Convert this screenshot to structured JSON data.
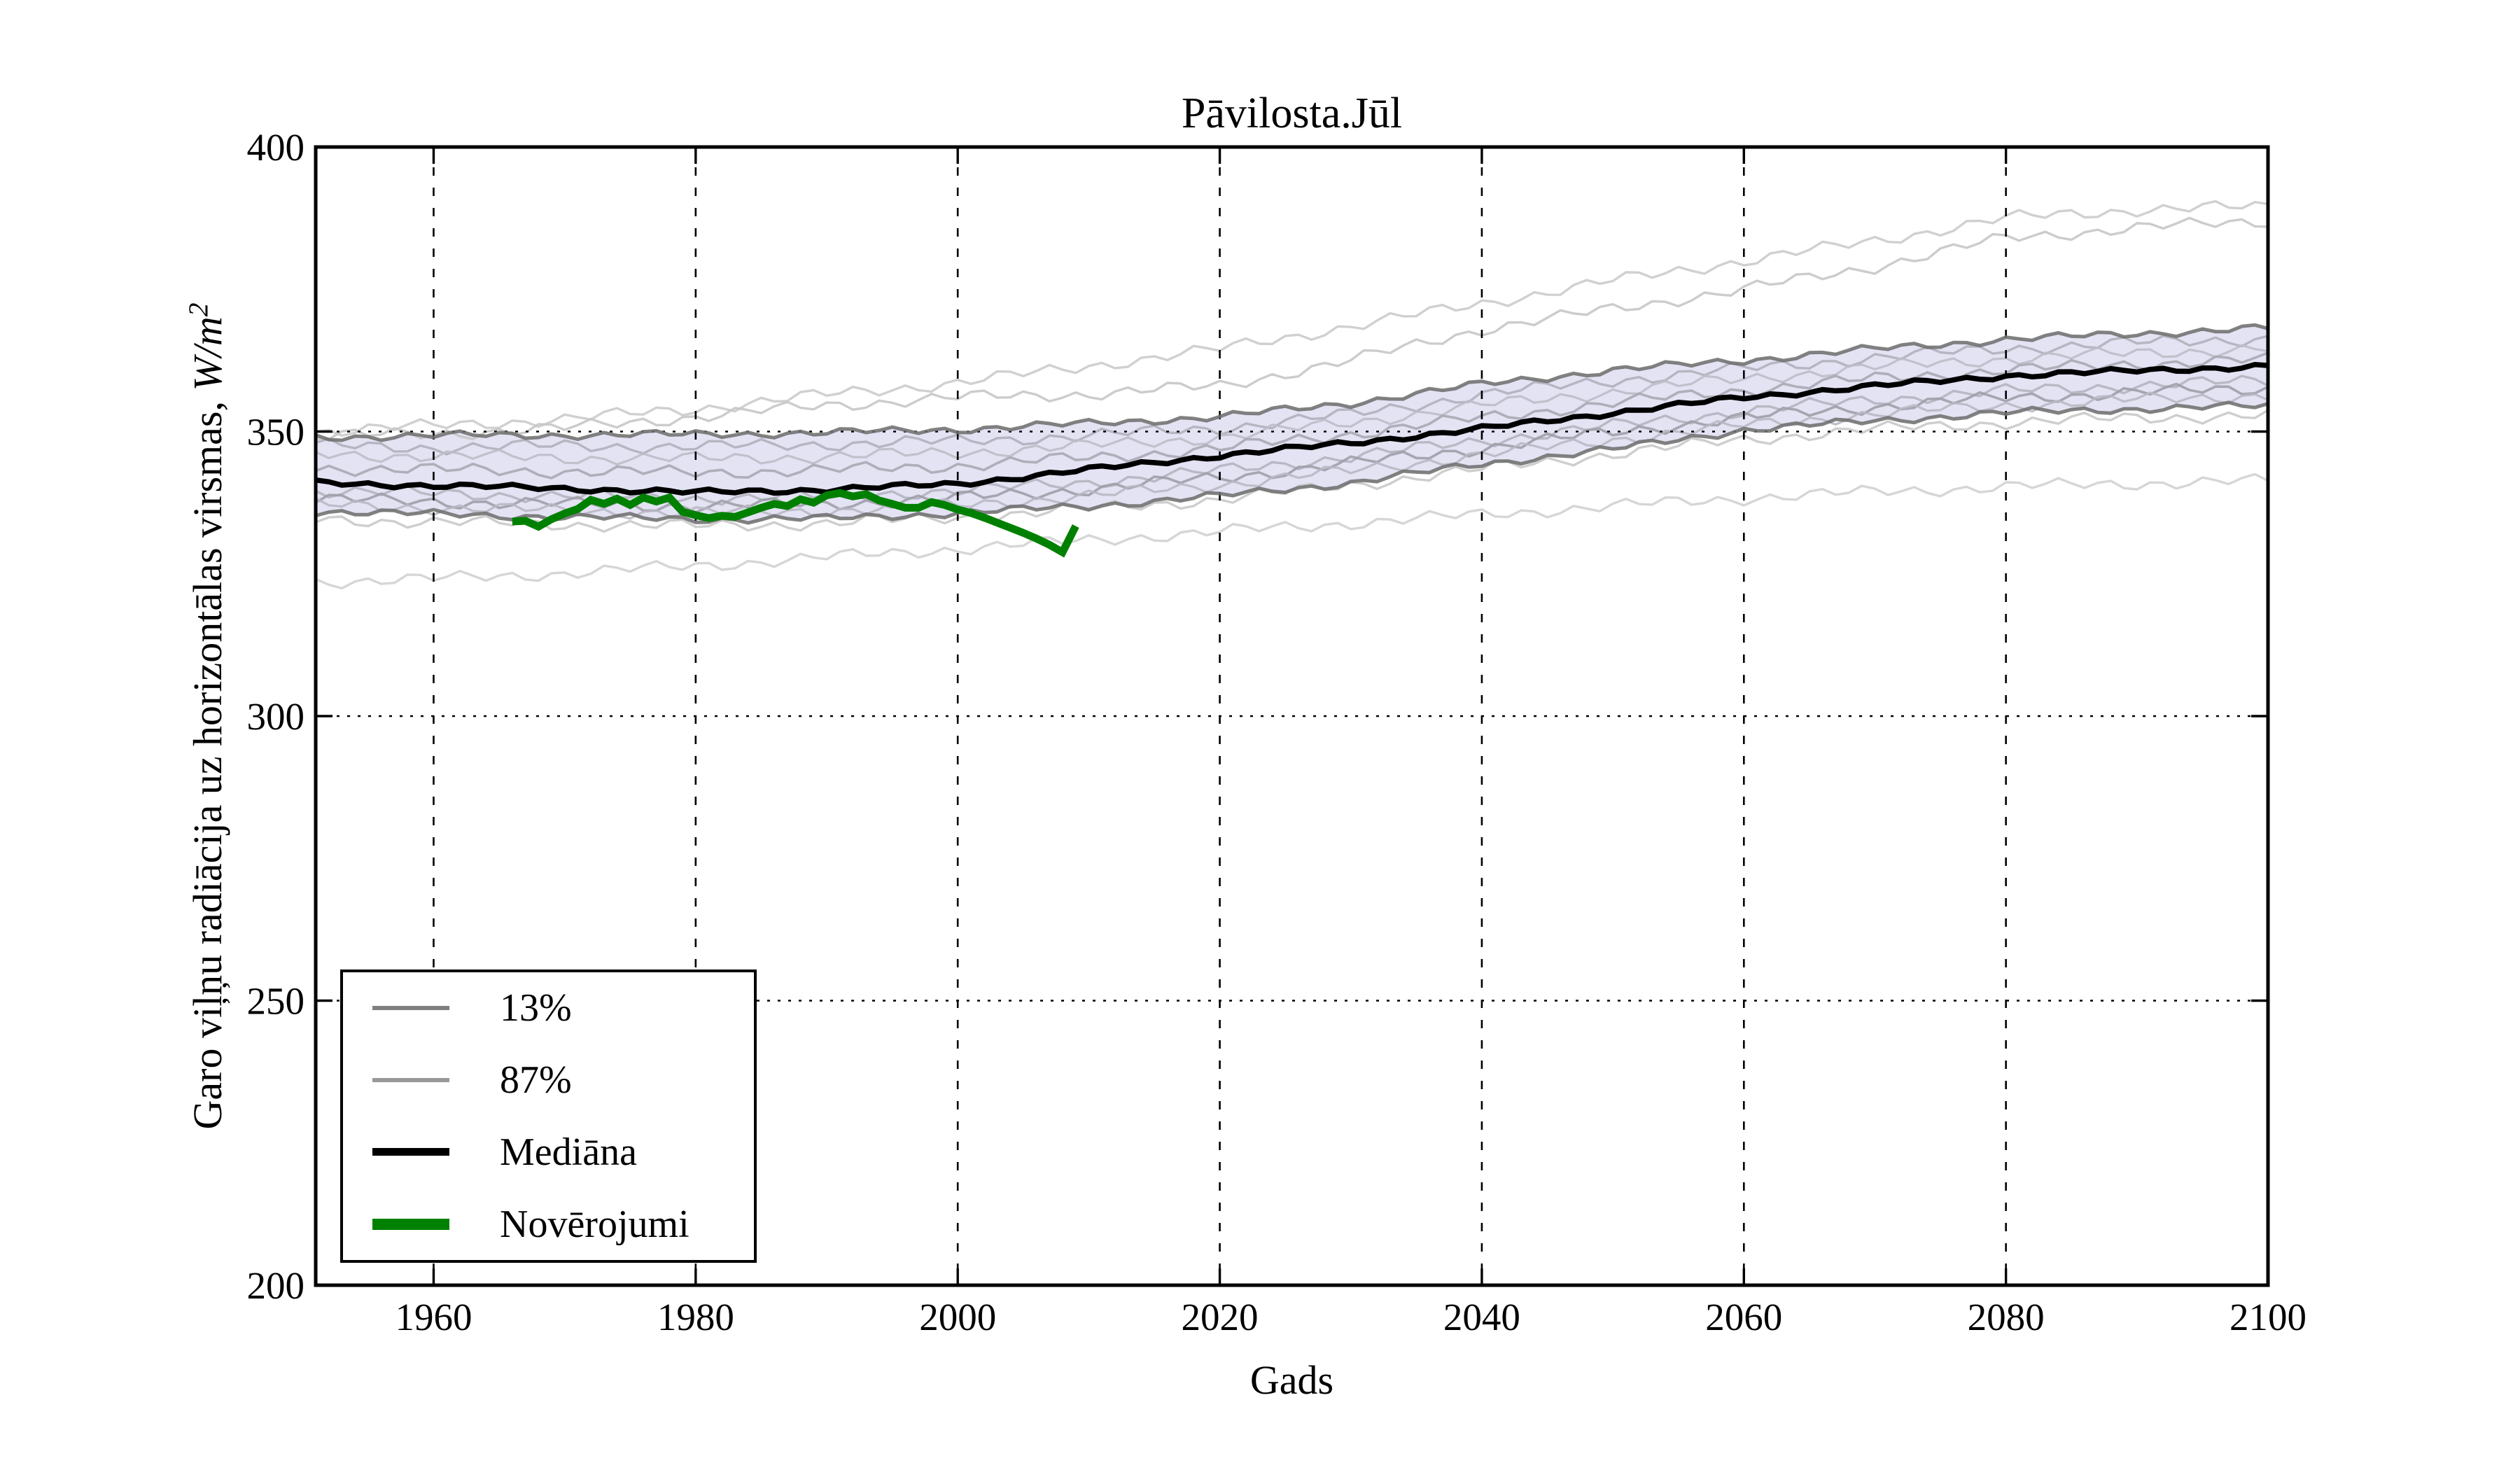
{
  "title": "Pāvilosta.Jūl",
  "axes": {
    "xlabel": "Gads",
    "ylabel_prefix": "Garo viļņu radiācija uz horizontālas virsmas, ",
    "ylabel_unit": "W/m",
    "ylabel_exponent": "2"
  },
  "legend": {
    "items": [
      {
        "label": "13%",
        "color": "#808080",
        "thickness": 6
      },
      {
        "label": "87%",
        "color": "#999999",
        "thickness": 6
      },
      {
        "label": "Mediāna",
        "color": "#000000",
        "thickness": 11
      },
      {
        "label": "Novērojumi",
        "color": "#008000",
        "thickness": 16
      }
    ]
  },
  "chart_data": {
    "type": "line",
    "title": "Pāvilosta.Jūl",
    "xlabel": "Gads",
    "ylabel": "Garo viļņu radiācija uz horizontālas virsmas, W/m²",
    "xlim": [
      1951,
      2100
    ],
    "ylim": [
      200,
      400
    ],
    "xticks": [
      1960,
      1980,
      2000,
      2020,
      2040,
      2060,
      2080,
      2100
    ],
    "yticks": [
      200,
      250,
      300,
      350,
      400
    ],
    "grid": true,
    "grid_style": "dotted",
    "legend_position": "lower left",
    "band_fill_color": "#e3e3f4",
    "model_years": [
      1951,
      1960,
      1970,
      1980,
      1990,
      2000,
      2010,
      2020,
      2030,
      2040,
      2050,
      2060,
      2070,
      2080,
      2090,
      2100
    ],
    "series": [
      {
        "name": "87%",
        "role": "quantile_upper_band_edge",
        "color": "#6f6f6f",
        "width": 5,
        "values": [
          349.0,
          349.3,
          349.4,
          349.5,
          349.8,
          350.4,
          351.4,
          352.6,
          355.0,
          358.3,
          360.8,
          362.5,
          364.5,
          366.2,
          367.2,
          368.2
        ]
      },
      {
        "name": "13%",
        "role": "quantile_lower_band_edge",
        "color": "#6f6f6f",
        "width": 5,
        "values": [
          336.0,
          335.5,
          335.0,
          334.6,
          334.7,
          335.7,
          336.9,
          338.7,
          341.0,
          344.3,
          346.9,
          350.3,
          351.9,
          353.3,
          354.0,
          354.5
        ]
      },
      {
        "name": "Mediāna",
        "role": "median",
        "color": "#000000",
        "width": 7.5,
        "values": [
          341.0,
          340.5,
          340.0,
          339.3,
          339.8,
          340.8,
          343.3,
          345.8,
          348.0,
          350.5,
          353.3,
          356.0,
          358.0,
          359.8,
          360.7,
          361.5
        ]
      },
      {
        "name": "Novērojumi",
        "role": "observations",
        "color": "#008000",
        "width": 11,
        "x": [
          1966,
          1967,
          1968,
          1969,
          1970,
          1971,
          1972,
          1973,
          1974,
          1975,
          1976,
          1977,
          1978,
          1979,
          1980,
          1981,
          1982,
          1983,
          1984,
          1985,
          1986,
          1987,
          1988,
          1989,
          1990,
          1991,
          1992,
          1993,
          1994,
          1995,
          1996,
          1997,
          1998,
          1999,
          2000,
          2001,
          2002,
          2003,
          2004,
          2005,
          2006,
          2007,
          2008,
          2009
        ],
        "values": [
          334.2,
          334.3,
          333.3,
          334.6,
          335.6,
          336.4,
          338.0,
          337.3,
          338.2,
          337.1,
          338.4,
          337.7,
          338.4,
          335.9,
          335.3,
          334.8,
          335.2,
          335.0,
          335.8,
          336.6,
          337.3,
          336.9,
          338.1,
          337.5,
          338.8,
          339.2,
          338.6,
          339.0,
          337.9,
          337.3,
          336.6,
          336.6,
          337.6,
          337.1,
          336.3,
          335.7,
          334.9,
          334.0,
          333.1,
          332.2,
          331.2,
          330.1,
          328.8,
          333.4
        ]
      }
    ],
    "ensemble_members": [
      {
        "name": "member-upper-1",
        "color": "#cbcbcb",
        "width": 3.4,
        "values": [
          350.0,
          351.0,
          352.2,
          354.0,
          356.5,
          358.6,
          361.5,
          364.5,
          368.5,
          372.5,
          376.5,
          380.0,
          383.5,
          387.5,
          389.0,
          389.5
        ]
      },
      {
        "name": "member-upper-2",
        "color": "#c6c6c6",
        "width": 3.4,
        "values": [
          349.2,
          349.6,
          350.6,
          352.6,
          354.6,
          356.0,
          356.6,
          358.0,
          362.5,
          368.0,
          371.5,
          375.0,
          379.0,
          384.0,
          385.8,
          387.0
        ]
      },
      {
        "name": "member-inner-1",
        "color": "#b0b0bc",
        "width": 3.4,
        "values": [
          347.5,
          347.2,
          347.5,
          347.3,
          347.8,
          348.3,
          349.3,
          350.6,
          353.0,
          356.5,
          359.0,
          361.0,
          363.0,
          364.6,
          365.6,
          366.4
        ]
      },
      {
        "name": "member-inner-2",
        "color": "#bcbcc8",
        "width": 3.2,
        "values": [
          346.0,
          345.7,
          345.4,
          345.2,
          345.6,
          346.3,
          347.5,
          349.0,
          351.6,
          354.6,
          357.0,
          359.3,
          361.3,
          362.8,
          363.8,
          364.6
        ]
      },
      {
        "name": "member-inner-3",
        "color": "#a8a8b4",
        "width": 3.6,
        "values": [
          343.6,
          343.3,
          343.0,
          342.8,
          343.2,
          344.0,
          345.4,
          347.0,
          349.6,
          352.4,
          355.0,
          357.3,
          359.3,
          360.8,
          361.9,
          362.6
        ]
      },
      {
        "name": "member-inner-4",
        "color": "#b4b4c0",
        "width": 3.4,
        "values": [
          339.6,
          339.1,
          338.7,
          338.3,
          338.7,
          339.6,
          341.1,
          343.1,
          345.6,
          348.4,
          351.0,
          353.6,
          355.6,
          357.1,
          358.1,
          358.9
        ]
      },
      {
        "name": "member-inner-5",
        "color": "#9e9ea8",
        "width": 3.6,
        "values": [
          338.1,
          337.7,
          337.3,
          336.9,
          337.3,
          338.3,
          339.9,
          341.9,
          344.4,
          347.1,
          349.9,
          352.4,
          354.4,
          355.9,
          356.9,
          357.6
        ]
      },
      {
        "name": "member-inner-6",
        "color": "#b8b8c4",
        "width": 3.2,
        "values": [
          337.1,
          336.6,
          336.1,
          335.7,
          336.1,
          337.1,
          338.7,
          340.7,
          343.1,
          345.9,
          348.6,
          351.1,
          353.1,
          354.6,
          355.6,
          356.4
        ]
      },
      {
        "name": "member-lower-1",
        "color": "#c9c9c9",
        "width": 3.4,
        "values": [
          334.6,
          334.1,
          333.7,
          333.4,
          333.9,
          334.9,
          336.4,
          338.1,
          340.6,
          343.4,
          346.1,
          348.6,
          350.4,
          351.6,
          352.4,
          352.9
        ]
      },
      {
        "name": "member-lower-2",
        "color": "#d2d2d2",
        "width": 3.4,
        "values": [
          323.6,
          324.1,
          325.1,
          326.4,
          327.9,
          329.4,
          330.9,
          332.4,
          333.9,
          335.4,
          336.9,
          338.3,
          339.4,
          340.3,
          340.9,
          341.3
        ]
      }
    ]
  }
}
